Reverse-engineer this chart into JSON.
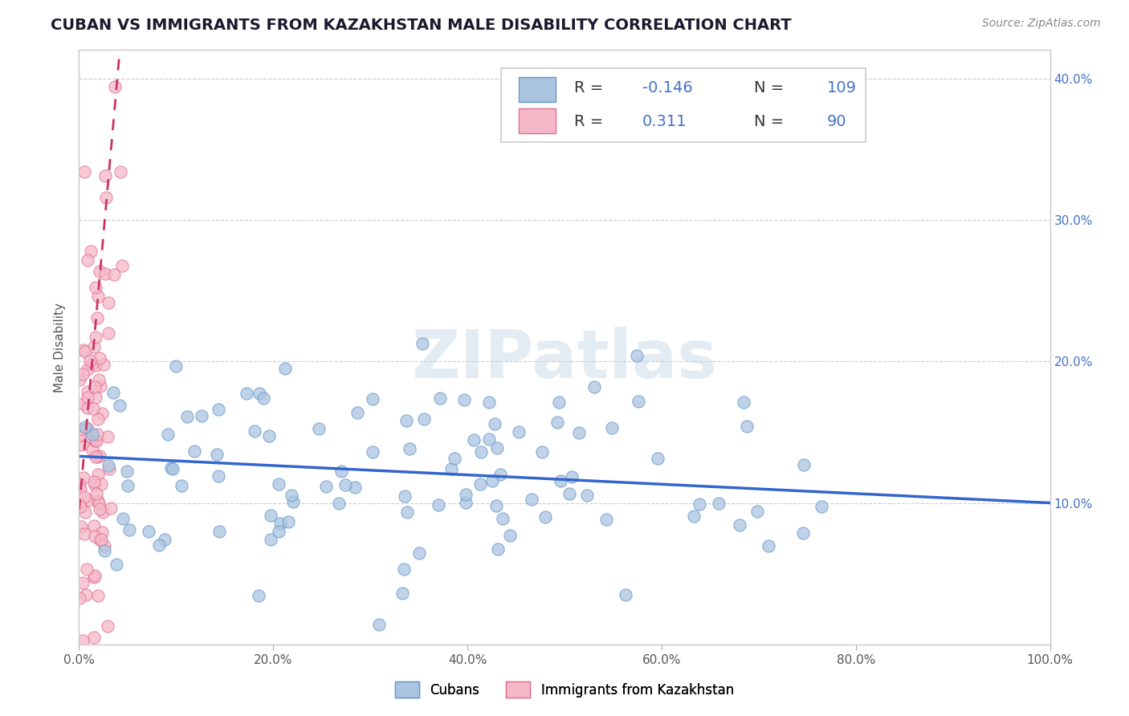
{
  "title": "CUBAN VS IMMIGRANTS FROM KAZAKHSTAN MALE DISABILITY CORRELATION CHART",
  "source": "Source: ZipAtlas.com",
  "ylabel": "Male Disability",
  "watermark": "ZIPatlas",
  "series": [
    {
      "label": "Cubans",
      "color": "#aac4e0",
      "edge_color": "#6699cc",
      "R": -0.146,
      "N": 109,
      "trend_color": "#3366cc",
      "trend_style": "solid"
    },
    {
      "label": "Immigrants from Kazakhstan",
      "color": "#f5b8c8",
      "edge_color": "#e07090",
      "R": 0.311,
      "N": 90,
      "trend_color": "#cc3366",
      "trend_style": "dashed"
    }
  ],
  "xlim": [
    0.0,
    1.0
  ],
  "ylim": [
    0.0,
    0.42
  ],
  "xticks": [
    0.0,
    0.2,
    0.4,
    0.6,
    0.8,
    1.0
  ],
  "yticks": [
    0.0,
    0.1,
    0.2,
    0.3,
    0.4
  ],
  "xtick_labels": [
    "0.0%",
    "20.0%",
    "40.0%",
    "60.0%",
    "80.0%",
    "100.0%"
  ],
  "right_ytick_labels": [
    "",
    "10.0%",
    "20.0%",
    "30.0%",
    "40.0%"
  ],
  "tick_color": "#4472c4",
  "axis_color": "#cccccc",
  "grid_color": "#cccccc",
  "background_color": "#ffffff",
  "legend_fontsize": 14,
  "title_fontsize": 14,
  "label_fontsize": 11,
  "source_fontsize": 10
}
